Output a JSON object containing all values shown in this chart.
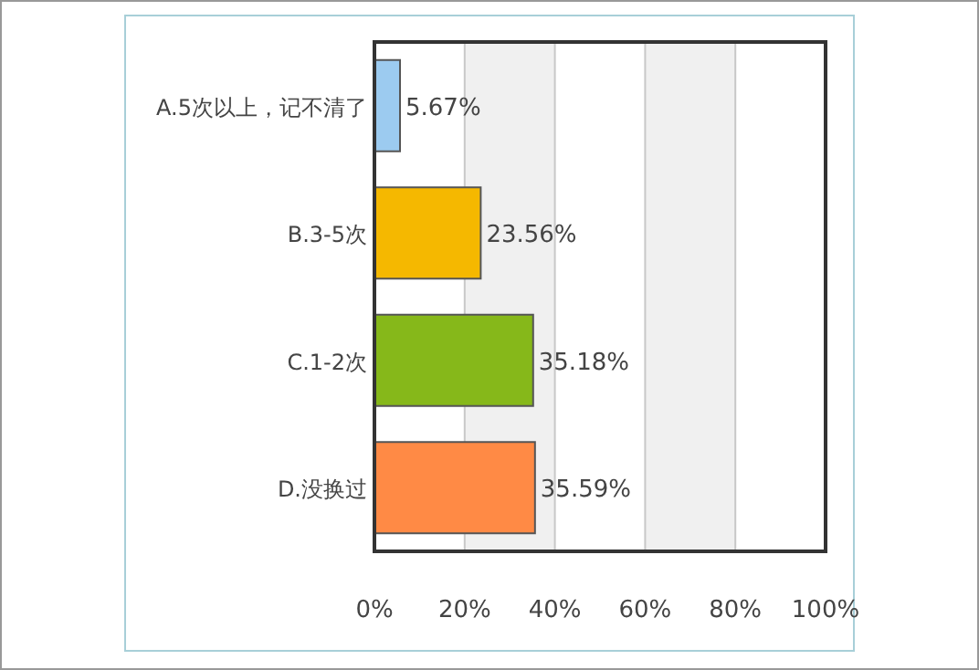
{
  "chart_data": {
    "type": "bar",
    "orientation": "horizontal",
    "categories": [
      "A.5次以上，记不清了",
      "B.3-5次",
      "C.1-2次",
      "D.没换过"
    ],
    "values": [
      5.67,
      23.56,
      35.18,
      35.59
    ],
    "colors": [
      "#9ccbf0",
      "#f5b800",
      "#86b81a",
      "#ff8a45"
    ],
    "value_labels": [
      "5.67%",
      "23.56%",
      "35.18%",
      "35.59%"
    ],
    "xlim": [
      0,
      100
    ],
    "xticks": [
      {
        "value": 0,
        "label": "0%"
      },
      {
        "value": 20,
        "label": "20%"
      },
      {
        "value": 40,
        "label": "40%"
      },
      {
        "value": 60,
        "label": "60%"
      },
      {
        "value": 80,
        "label": "80%"
      },
      {
        "value": 100,
        "label": "100%"
      }
    ],
    "grid": "x"
  }
}
